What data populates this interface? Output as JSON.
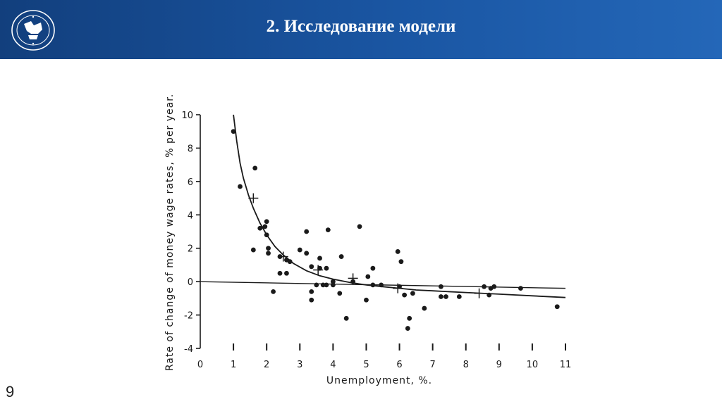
{
  "slide": {
    "title": "2. Исследование модели",
    "number": "9",
    "header_color": "#1a56a3"
  },
  "logo": {
    "icon": "university-seal-icon"
  },
  "chart_data": {
    "type": "scatter",
    "xlabel": "Unemployment,    %.",
    "ylabel": "Rate of change of money wage rates, % per year.",
    "xlim": [
      0,
      11
    ],
    "ylim": [
      -4,
      10
    ],
    "x_ticks": [
      "0",
      "1",
      "2",
      "3",
      "4",
      "5",
      "6",
      "7",
      "8",
      "9",
      "10",
      "11"
    ],
    "y_ticks": [
      "-4",
      "-2",
      "0",
      "2",
      "4",
      "6",
      "8",
      "10"
    ],
    "grid": false,
    "points": [
      [
        1.0,
        9.0
      ],
      [
        1.2,
        5.7
      ],
      [
        1.65,
        6.8
      ],
      [
        1.6,
        1.9
      ],
      [
        1.8,
        3.2
      ],
      [
        1.95,
        3.3
      ],
      [
        2.0,
        3.6
      ],
      [
        2.0,
        2.8
      ],
      [
        2.05,
        2.0
      ],
      [
        2.05,
        1.7
      ],
      [
        2.2,
        -0.6
      ],
      [
        2.4,
        1.5
      ],
      [
        2.4,
        0.5
      ],
      [
        2.6,
        1.3
      ],
      [
        2.6,
        0.5
      ],
      [
        2.7,
        1.2
      ],
      [
        3.0,
        1.9
      ],
      [
        3.2,
        1.7
      ],
      [
        3.2,
        3.0
      ],
      [
        3.35,
        0.9
      ],
      [
        3.35,
        -0.6
      ],
      [
        3.35,
        -1.1
      ],
      [
        3.5,
        -0.2
      ],
      [
        3.6,
        0.8
      ],
      [
        3.6,
        1.4
      ],
      [
        3.7,
        -0.2
      ],
      [
        3.8,
        0.8
      ],
      [
        3.8,
        -0.2
      ],
      [
        3.85,
        3.1
      ],
      [
        4.0,
        0.0
      ],
      [
        4.0,
        -0.2
      ],
      [
        4.2,
        -0.7
      ],
      [
        4.25,
        1.5
      ],
      [
        4.4,
        -2.2
      ],
      [
        4.6,
        -0.0
      ],
      [
        4.8,
        3.3
      ],
      [
        5.0,
        -1.1
      ],
      [
        5.05,
        0.3
      ],
      [
        5.2,
        0.8
      ],
      [
        5.2,
        -0.2
      ],
      [
        5.45,
        -0.2
      ],
      [
        5.95,
        1.8
      ],
      [
        6.0,
        -0.3
      ],
      [
        6.05,
        1.2
      ],
      [
        6.15,
        -0.8
      ],
      [
        6.25,
        -2.8
      ],
      [
        6.3,
        -2.2
      ],
      [
        6.4,
        -0.7
      ],
      [
        6.75,
        -1.6
      ],
      [
        7.25,
        -0.3
      ],
      [
        7.25,
        -0.9
      ],
      [
        7.4,
        -0.9
      ],
      [
        7.8,
        -0.9
      ],
      [
        8.55,
        -0.3
      ],
      [
        8.7,
        -0.8
      ],
      [
        8.75,
        -0.4
      ],
      [
        8.85,
        -0.3
      ],
      [
        9.65,
        -0.4
      ],
      [
        10.75,
        -1.5
      ]
    ],
    "average_points": [
      [
        1.6,
        5.0
      ],
      [
        2.5,
        1.5
      ],
      [
        3.55,
        0.7
      ],
      [
        4.6,
        0.2
      ],
      [
        5.95,
        -0.4
      ],
      [
        8.4,
        -0.7
      ]
    ],
    "fitted_curve": {
      "label": "",
      "x": [
        1.0,
        1.1,
        1.2,
        1.3,
        1.45,
        1.6,
        1.8,
        2.0,
        2.25,
        2.5,
        2.8,
        3.2,
        3.6,
        4.0,
        4.5,
        5.0,
        5.5,
        6.0,
        6.5,
        7.0,
        8.0,
        9.0,
        10.0,
        11.0
      ],
      "y": [
        10.0,
        8.4,
        7.1,
        6.2,
        5.2,
        4.4,
        3.5,
        2.8,
        2.1,
        1.6,
        1.1,
        0.65,
        0.35,
        0.15,
        -0.05,
        -0.2,
        -0.3,
        -0.4,
        -0.5,
        -0.55,
        -0.65,
        -0.75,
        -0.85,
        -0.95
      ]
    },
    "regression_line": {
      "x": [
        0,
        11
      ],
      "y": [
        0.0,
        -0.4
      ]
    }
  }
}
